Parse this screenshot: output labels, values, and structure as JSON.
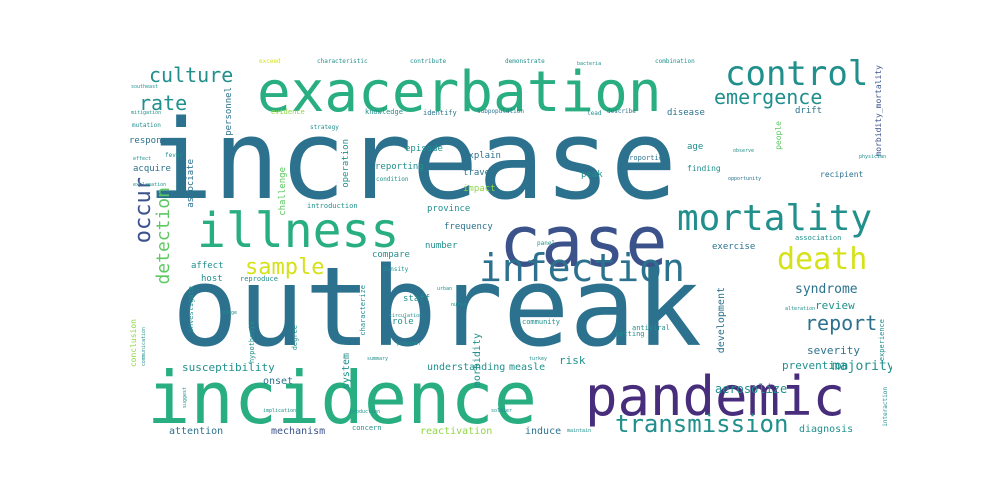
{
  "palette": {
    "dark_blue": "#3b528b",
    "teal": "#21908d",
    "blue_teal": "#2c728e",
    "green": "#5ec962",
    "light_green": "#8fd744",
    "yellow": "#d5e21a",
    "purple": "#472d7b",
    "sea": "#28ae80",
    "deep": "#440154"
  },
  "words": [
    {
      "text": "increase",
      "weight": 100
    },
    {
      "text": "outbreak",
      "weight": 92
    },
    {
      "text": "incidence",
      "weight": 70
    },
    {
      "text": "case",
      "weight": 66
    },
    {
      "text": "pandemic",
      "weight": 58
    },
    {
      "text": "exacerbation",
      "weight": 58
    },
    {
      "text": "illness",
      "weight": 50
    },
    {
      "text": "infection",
      "weight": 40
    },
    {
      "text": "mortality",
      "weight": 38
    },
    {
      "text": "control",
      "weight": 32
    },
    {
      "text": "death",
      "weight": 30
    },
    {
      "text": "transmission",
      "weight": 26
    },
    {
      "text": "culture",
      "weight": 22
    },
    {
      "text": "rate",
      "weight": 22
    },
    {
      "text": "occur",
      "weight": 22
    },
    {
      "text": "sample",
      "weight": 22
    },
    {
      "text": "report",
      "weight": 20
    },
    {
      "text": "emergence",
      "weight": 20
    },
    {
      "text": "detection",
      "weight": 18
    },
    {
      "text": "syndrome",
      "weight": 14
    },
    {
      "text": "review",
      "weight": 12
    },
    {
      "text": "severity",
      "weight": 11
    },
    {
      "text": "majority",
      "weight": 12
    },
    {
      "text": "aerosolize",
      "weight": 12
    },
    {
      "text": "prevention",
      "weight": 11
    },
    {
      "text": "susceptibility",
      "weight": 11
    },
    {
      "text": "understanding",
      "weight": 10
    },
    {
      "text": "diagnosis",
      "weight": 10
    },
    {
      "text": "reactivation",
      "weight": 10
    },
    {
      "text": "induce",
      "weight": 10
    },
    {
      "text": "attention",
      "weight": 10
    },
    {
      "text": "mechanism",
      "weight": 10
    },
    {
      "text": "onset",
      "weight": 10
    },
    {
      "text": "risk",
      "weight": 11
    },
    {
      "text": "measle",
      "weight": 10
    },
    {
      "text": "morbidity",
      "weight": 10
    },
    {
      "text": "system",
      "weight": 10
    },
    {
      "text": "development",
      "weight": 10
    },
    {
      "text": "response",
      "weight": 9
    },
    {
      "text": "acquire",
      "weight": 9
    },
    {
      "text": "associate",
      "weight": 9
    },
    {
      "text": "challenge",
      "weight": 9
    },
    {
      "text": "personnel",
      "weight": 9
    },
    {
      "text": "operation",
      "weight": 9
    },
    {
      "text": "episode",
      "weight": 9
    },
    {
      "text": "explain",
      "weight": 9
    },
    {
      "text": "reporting",
      "weight": 9
    },
    {
      "text": "travel",
      "weight": 9
    },
    {
      "text": "impact",
      "weight": 9
    },
    {
      "text": "province",
      "weight": 9
    },
    {
      "text": "frequency",
      "weight": 9
    },
    {
      "text": "number",
      "weight": 9
    },
    {
      "text": "compare",
      "weight": 9
    },
    {
      "text": "affect",
      "weight": 9
    },
    {
      "text": "host",
      "weight": 9
    },
    {
      "text": "staff",
      "weight": 9
    },
    {
      "text": "role",
      "weight": 9
    },
    {
      "text": "exercise",
      "weight": 9
    },
    {
      "text": "disease",
      "weight": 9
    },
    {
      "text": "age",
      "weight": 9
    },
    {
      "text": "peak",
      "weight": 9
    },
    {
      "text": "drift",
      "weight": 9
    },
    {
      "text": "finding",
      "weight": 8
    },
    {
      "text": "recipient",
      "weight": 8
    },
    {
      "text": "morbidity_mortality",
      "weight": 8
    },
    {
      "text": "conclusion",
      "weight": 8
    },
    {
      "text": "association",
      "weight": 7
    },
    {
      "text": "proportion",
      "weight": 7
    },
    {
      "text": "antiviral",
      "weight": 7
    },
    {
      "text": "community",
      "weight": 7
    },
    {
      "text": "setting",
      "weight": 7
    },
    {
      "text": "people",
      "weight": 8
    },
    {
      "text": "experience",
      "weight": 7
    },
    {
      "text": "interaction",
      "weight": 6
    },
    {
      "text": "concern",
      "weight": 7
    },
    {
      "text": "characterize",
      "weight": 7
    },
    {
      "text": "degree",
      "weight": 7
    },
    {
      "text": "hypothesis",
      "weight": 7
    },
    {
      "text": "investigate",
      "weight": 7
    },
    {
      "text": "introduction",
      "weight": 7
    },
    {
      "text": "reproduce",
      "weight": 7
    },
    {
      "text": "identify",
      "weight": 7
    },
    {
      "text": "evidence",
      "weight": 7
    },
    {
      "text": "knowledge",
      "weight": 7
    },
    {
      "text": "subpopulation",
      "weight": 6
    },
    {
      "text": "describe",
      "weight": 6
    },
    {
      "text": "condition",
      "weight": 6
    },
    {
      "text": "density",
      "weight": 6
    },
    {
      "text": "panel",
      "weight": 6
    },
    {
      "text": "mutation",
      "weight": 6
    },
    {
      "text": "fever",
      "weight": 6
    },
    {
      "text": "strategy",
      "weight": 6
    },
    {
      "text": "exceed",
      "weight": 6
    },
    {
      "text": "characteristic",
      "weight": 6
    },
    {
      "text": "contribute",
      "weight": 6
    },
    {
      "text": "demonstrate",
      "weight": 6
    },
    {
      "text": "combination",
      "weight": 6
    },
    {
      "text": "lead",
      "weight": 6
    },
    {
      "text": "communication",
      "weight": 5
    },
    {
      "text": "stage",
      "weight": 5
    },
    {
      "text": "provider",
      "weight": 5
    },
    {
      "text": "implication",
      "weight": 5
    },
    {
      "text": "opportunity",
      "weight": 5
    },
    {
      "text": "bacteria",
      "weight": 5
    },
    {
      "text": "observe",
      "weight": 5
    },
    {
      "text": "alteration",
      "weight": 5
    },
    {
      "text": "southeast",
      "weight": 5
    },
    {
      "text": "mitigation",
      "weight": 5
    },
    {
      "text": "explanation",
      "weight": 5
    },
    {
      "text": "suggest",
      "weight": 5
    },
    {
      "text": "summary",
      "weight": 5
    },
    {
      "text": "production",
      "weight": 5
    },
    {
      "text": "maintain",
      "weight": 5
    },
    {
      "text": "soldier",
      "weight": 5
    },
    {
      "text": "turkey",
      "weight": 5
    },
    {
      "text": "circulation",
      "weight": 5
    },
    {
      "text": "urban",
      "weight": 5
    },
    {
      "text": "nurse",
      "weight": 5
    },
    {
      "text": "physician",
      "weight": 5
    },
    {
      "text": "effect",
      "weight": 5
    }
  ]
}
